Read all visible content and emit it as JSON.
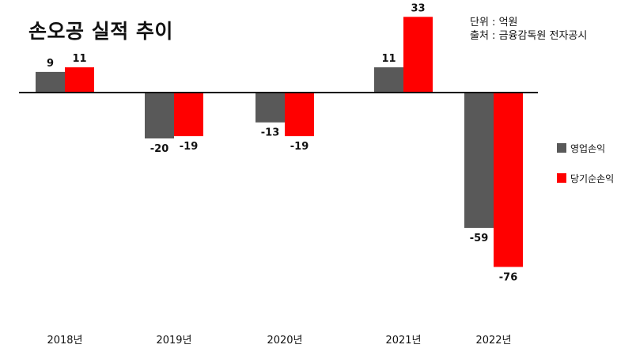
{
  "meta": {
    "unit": "단위 : 억원",
    "source": "출처 : 금융감독원 전자공시"
  },
  "colors": {
    "series_1": "#595959",
    "series_2": "#ff0000",
    "axis": "#111111"
  },
  "chart_data": {
    "type": "bar",
    "title": "손오공 실적 추이",
    "xlabel": "",
    "ylabel": "",
    "categories": [
      "2018년",
      "2019년",
      "2020년",
      "2021년",
      "2022년"
    ],
    "series": [
      {
        "name": "영업손익",
        "values": [
          9,
          -20,
          -13,
          11,
          -59
        ]
      },
      {
        "name": "당기순손익",
        "values": [
          11,
          -19,
          -19,
          33,
          -76
        ]
      }
    ],
    "ylim": [
      -76,
      33
    ],
    "grid": false,
    "legend": "right"
  }
}
